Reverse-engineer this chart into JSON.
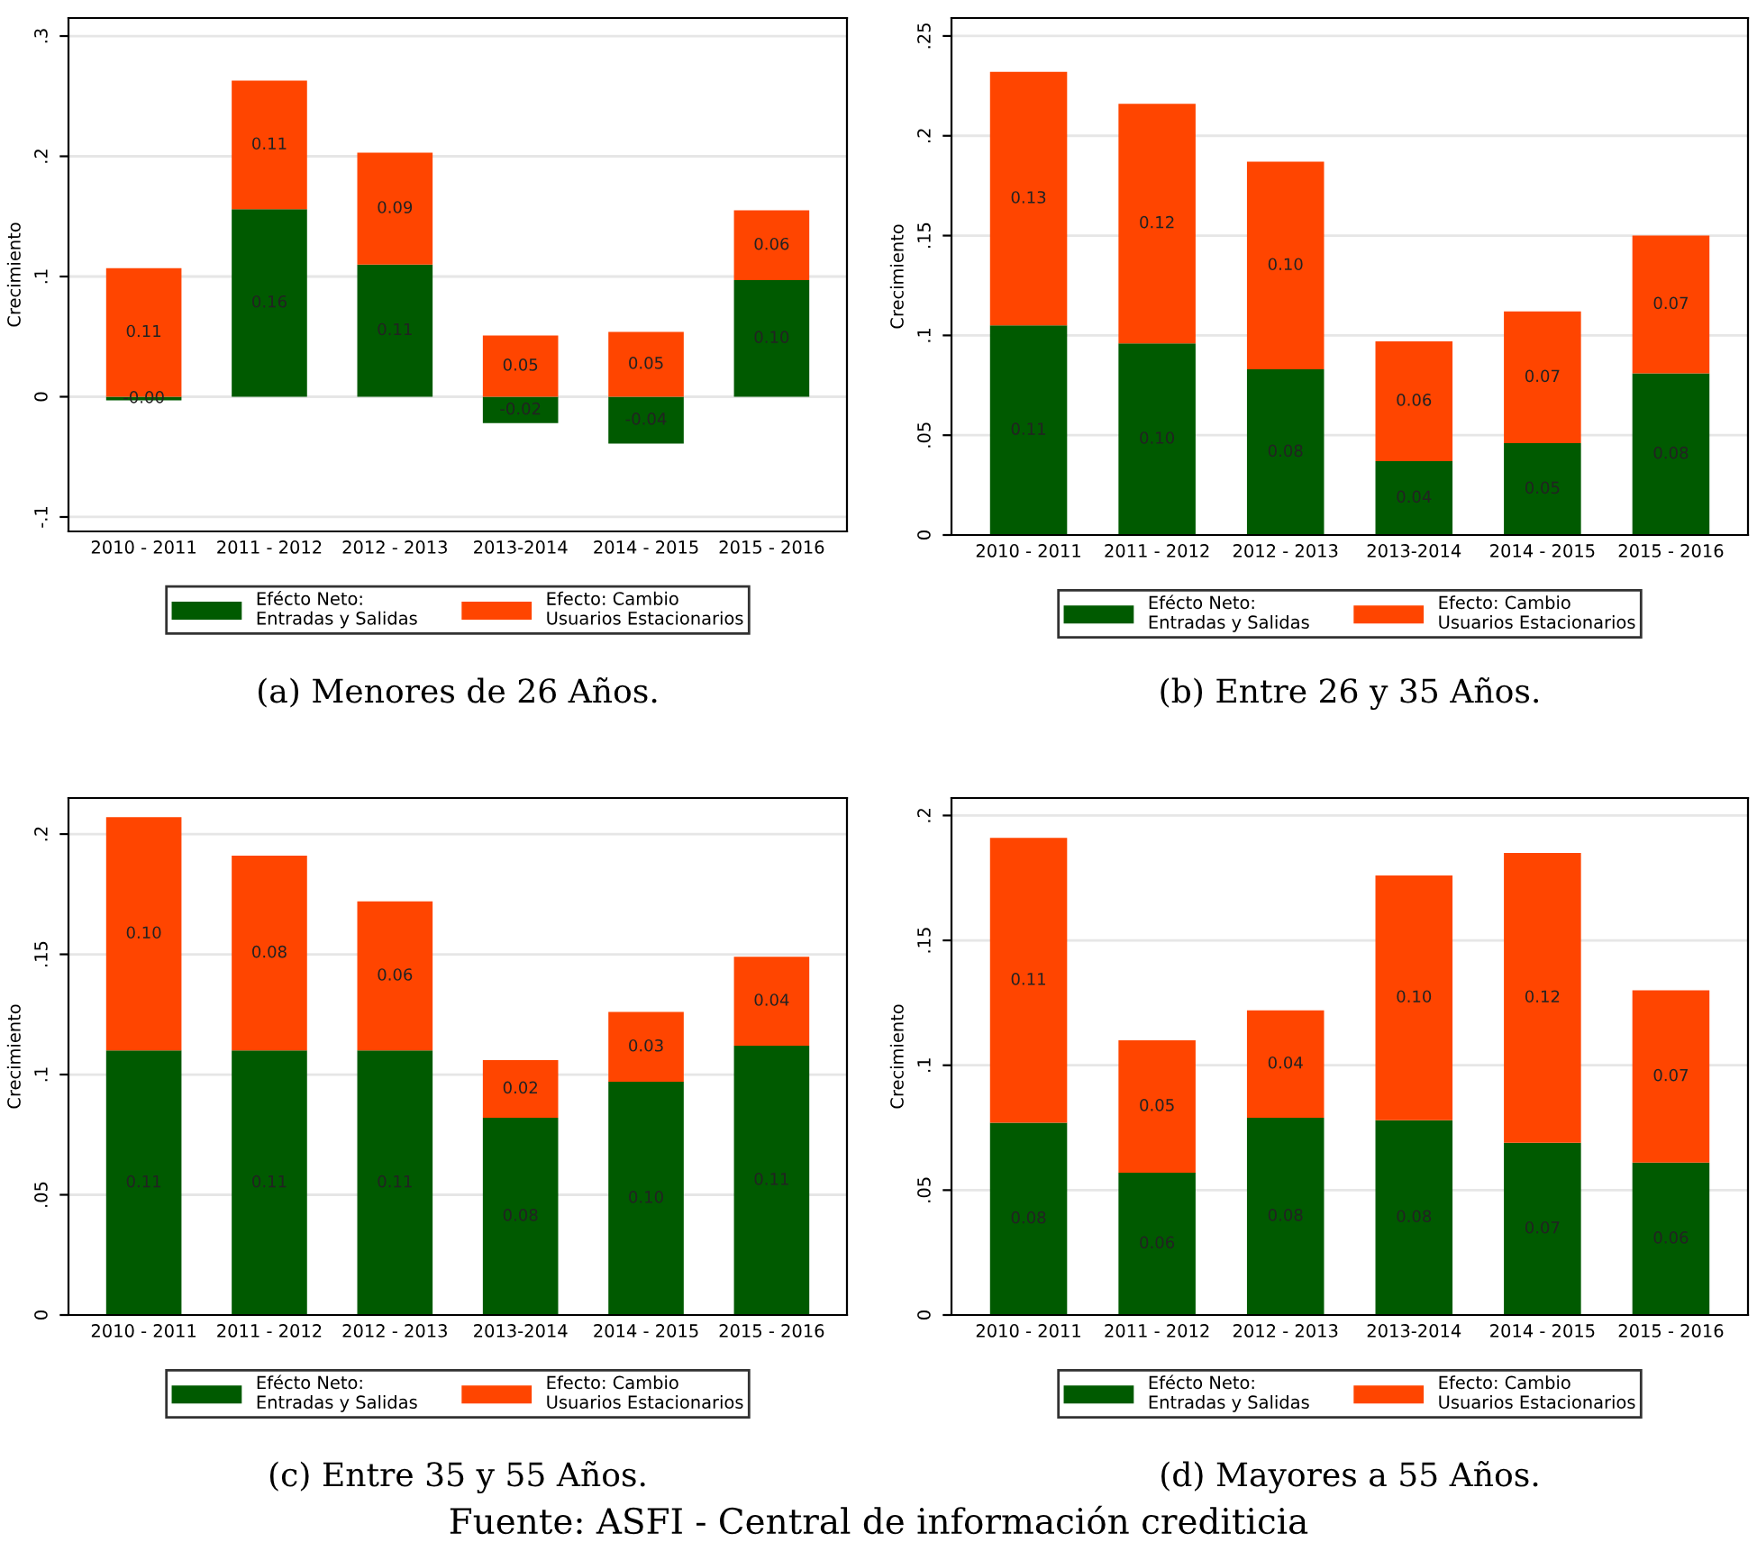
{
  "chart_data": [
    {
      "type": "bar",
      "stacked": true,
      "ylabel": "Crecimiento",
      "categories": [
        "2010 - 2011",
        "2011 - 2012",
        "2012 - 2013",
        "2013-2014",
        "2014 - 2015",
        "2015 - 2016"
      ],
      "series": [
        {
          "name": "Efécto Neto:\nEntradas y Salidas",
          "color": "#005a00",
          "values": [
            -0.003,
            0.156,
            0.11,
            -0.022,
            -0.039,
            0.097
          ],
          "value_labels": [
            "-0.00",
            "0.16",
            "0.11",
            "-0.02",
            "-0.04",
            "0.10"
          ]
        },
        {
          "name": "Efecto: Cambio\nUsuarios Estacionarios",
          "color": "#ff4500",
          "values": [
            0.107,
            0.107,
            0.093,
            0.051,
            0.054,
            0.058
          ],
          "value_labels": [
            "0.11",
            "0.11",
            "0.09",
            "0.05",
            "0.05",
            "0.06"
          ]
        }
      ],
      "ylim": [
        -0.112,
        0.315
      ],
      "yticks": [
        {
          "value": -0.1,
          "label": "-.1"
        },
        0,
        {
          "value": 0.1,
          "label": ".1"
        },
        {
          "value": 0.2,
          "label": ".2"
        },
        {
          "value": 0.3,
          "label": ".3"
        }
      ],
      "grid": "y",
      "legend": "bottom",
      "annotations": [
        "(a) Menores de 26 Años."
      ]
    },
    {
      "type": "bar",
      "stacked": true,
      "ylabel": "Crecimiento",
      "categories": [
        "2010 - 2011",
        "2011 - 2012",
        "2012 - 2013",
        "2013-2014",
        "2014 - 2015",
        "2015 - 2016"
      ],
      "series": [
        {
          "name": "Efécto Neto:\nEntradas y Salidas",
          "color": "#005a00",
          "values": [
            0.105,
            0.096,
            0.083,
            0.037,
            0.046,
            0.081
          ],
          "value_labels": [
            "0.11",
            "0.10",
            "0.08",
            "0.04",
            "0.05",
            "0.08"
          ]
        },
        {
          "name": "Efecto: Cambio\nUsuarios Estacionarios",
          "color": "#ff4500",
          "values": [
            0.127,
            0.12,
            0.104,
            0.06,
            0.066,
            0.069
          ],
          "value_labels": [
            "0.13",
            "0.12",
            "0.10",
            "0.06",
            "0.07",
            "0.07"
          ]
        }
      ],
      "ylim": [
        0,
        0.259
      ],
      "yticks": [
        0,
        {
          "value": 0.05,
          "label": ".05"
        },
        {
          "value": 0.1,
          "label": ".1"
        },
        {
          "value": 0.15,
          "label": ".15"
        },
        {
          "value": 0.2,
          "label": ".2"
        },
        {
          "value": 0.25,
          "label": ".25"
        }
      ],
      "grid": "y",
      "legend": "bottom",
      "annotations": [
        "(b) Entre 26 y 35 Años."
      ]
    },
    {
      "type": "bar",
      "stacked": true,
      "ylabel": "Crecimiento",
      "categories": [
        "2010 - 2011",
        "2011 - 2012",
        "2012 - 2013",
        "2013-2014",
        "2014 - 2015",
        "2015 - 2016"
      ],
      "series": [
        {
          "name": "Efécto Neto:\nEntradas y Salidas",
          "color": "#005a00",
          "values": [
            0.11,
            0.11,
            0.11,
            0.082,
            0.097,
            0.112
          ],
          "value_labels": [
            "0.11",
            "0.11",
            "0.11",
            "0.08",
            "0.10",
            "0.11"
          ]
        },
        {
          "name": "Efecto: Cambio\nUsuarios Estacionarios",
          "color": "#ff4500",
          "values": [
            0.097,
            0.081,
            0.062,
            0.024,
            0.029,
            0.037
          ],
          "value_labels": [
            "0.10",
            "0.08",
            "0.06",
            "0.02",
            "0.03",
            "0.04"
          ]
        }
      ],
      "ylim": [
        0,
        0.215
      ],
      "yticks": [
        0,
        {
          "value": 0.05,
          "label": ".05"
        },
        {
          "value": 0.1,
          "label": ".1"
        },
        {
          "value": 0.15,
          "label": ".15"
        },
        {
          "value": 0.2,
          "label": ".2"
        }
      ],
      "grid": "y",
      "legend": "bottom",
      "annotations": [
        "(c) Entre 35 y 55 Años."
      ]
    },
    {
      "type": "bar",
      "stacked": true,
      "ylabel": "Crecimiento",
      "categories": [
        "2010 - 2011",
        "2011 - 2012",
        "2012 - 2013",
        "2013-2014",
        "2014 - 2015",
        "2015 - 2016"
      ],
      "series": [
        {
          "name": "Efécto Neto:\nEntradas y Salidas",
          "color": "#005a00",
          "values": [
            0.077,
            0.057,
            0.079,
            0.078,
            0.069,
            0.061
          ],
          "value_labels": [
            "0.08",
            "0.06",
            "0.08",
            "0.08",
            "0.07",
            "0.06"
          ]
        },
        {
          "name": "Efecto: Cambio\nUsuarios Estacionarios",
          "color": "#ff4500",
          "values": [
            0.114,
            0.053,
            0.043,
            0.098,
            0.116,
            0.069
          ],
          "value_labels": [
            "0.11",
            "0.05",
            "0.04",
            "0.10",
            "0.12",
            "0.07"
          ]
        }
      ],
      "ylim": [
        0,
        0.207
      ],
      "yticks": [
        0,
        {
          "value": 0.05,
          "label": ".05"
        },
        {
          "value": 0.1,
          "label": ".1"
        },
        {
          "value": 0.15,
          "label": ".15"
        },
        {
          "value": 0.2,
          "label": ".2"
        }
      ],
      "grid": "y",
      "legend": "bottom",
      "annotations": [
        "(d) Mayores a 55 Años.",
        "Fuente: ASFI - Central de información crediticia"
      ]
    }
  ]
}
